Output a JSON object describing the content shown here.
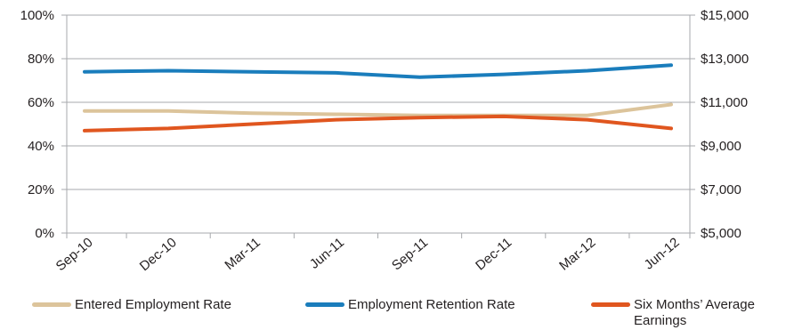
{
  "chart_data": {
    "type": "line",
    "categories": [
      "Sep-10",
      "Dec-10",
      "Mar-11",
      "Jun-11",
      "Sep-11",
      "Dec-11",
      "Mar-12",
      "Jun-12"
    ],
    "left_axis": {
      "ticks": [
        "0%",
        "20%",
        "40%",
        "60%",
        "80%",
        "100%"
      ],
      "ylim": [
        0,
        100
      ]
    },
    "right_axis": {
      "ticks": [
        "$5,000",
        "$7,000",
        "$9,000",
        "$11,000",
        "$13,000",
        "$15,000"
      ],
      "ylim": [
        5000,
        15000
      ]
    },
    "grid": true,
    "legend_position": "bottom",
    "series": [
      {
        "name": "Entered Employment Rate",
        "axis": "left",
        "color": "#dcc49b",
        "values": [
          56,
          56,
          55,
          54.5,
          54,
          54,
          54,
          59
        ]
      },
      {
        "name": "Employment Retention Rate",
        "axis": "left",
        "color": "#1a7dbc",
        "values": [
          74,
          74.5,
          74,
          73.5,
          71.5,
          72.8,
          74.5,
          77
        ]
      },
      {
        "name": "Six Months’ Average Earnings",
        "axis": "right",
        "color": "#e0561f",
        "values": [
          9700,
          9800,
          10000,
          10200,
          10300,
          10350,
          10200,
          9800
        ]
      }
    ]
  }
}
